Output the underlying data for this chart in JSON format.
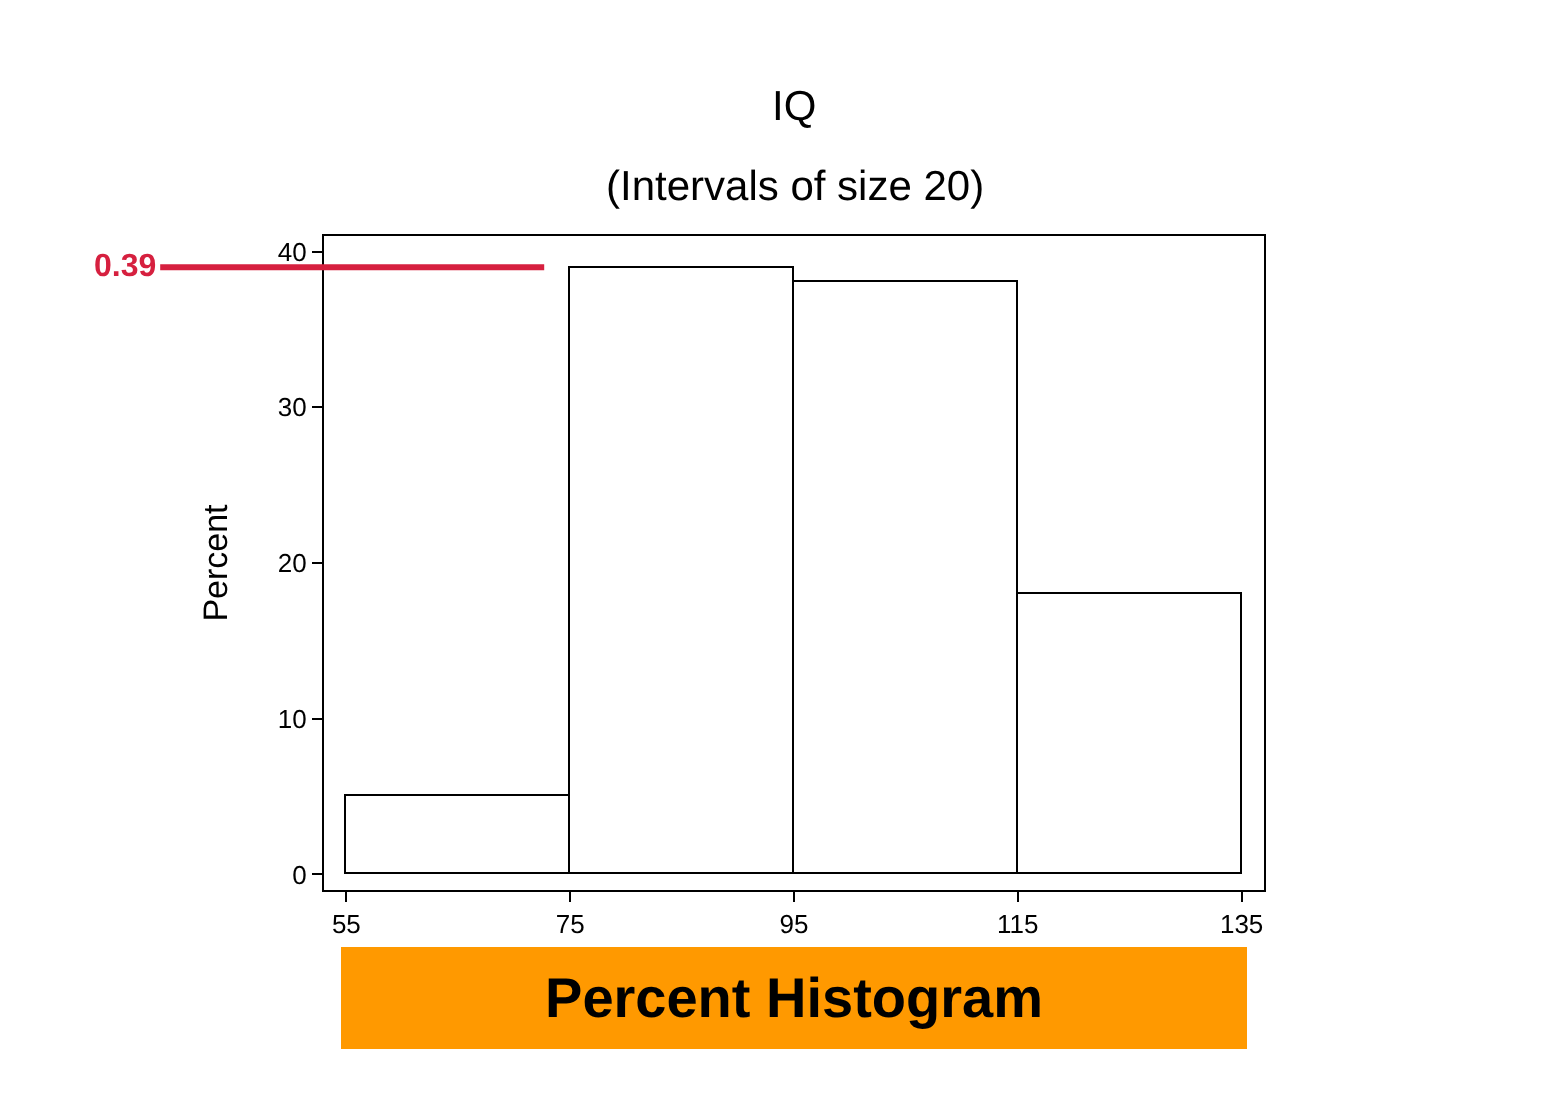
{
  "chart_data": {
    "type": "histogram",
    "title": "IQ",
    "subtitle": "(Intervals of size 20)",
    "ylabel": "Percent",
    "bins": [
      55,
      75,
      95,
      115,
      135
    ],
    "values": [
      5,
      39,
      38,
      18
    ],
    "color": "#ffffff",
    "xlim": [
      53,
      137
    ],
    "xticks": [
      55,
      75,
      95,
      115,
      135
    ],
    "ylim": [
      -1,
      41
    ],
    "yticks": [
      0,
      10,
      20,
      30,
      40
    ],
    "annotations": [
      {
        "text": "0.39",
        "x": 75,
        "y": 39
      },
      "Percent Histogram"
    ]
  }
}
